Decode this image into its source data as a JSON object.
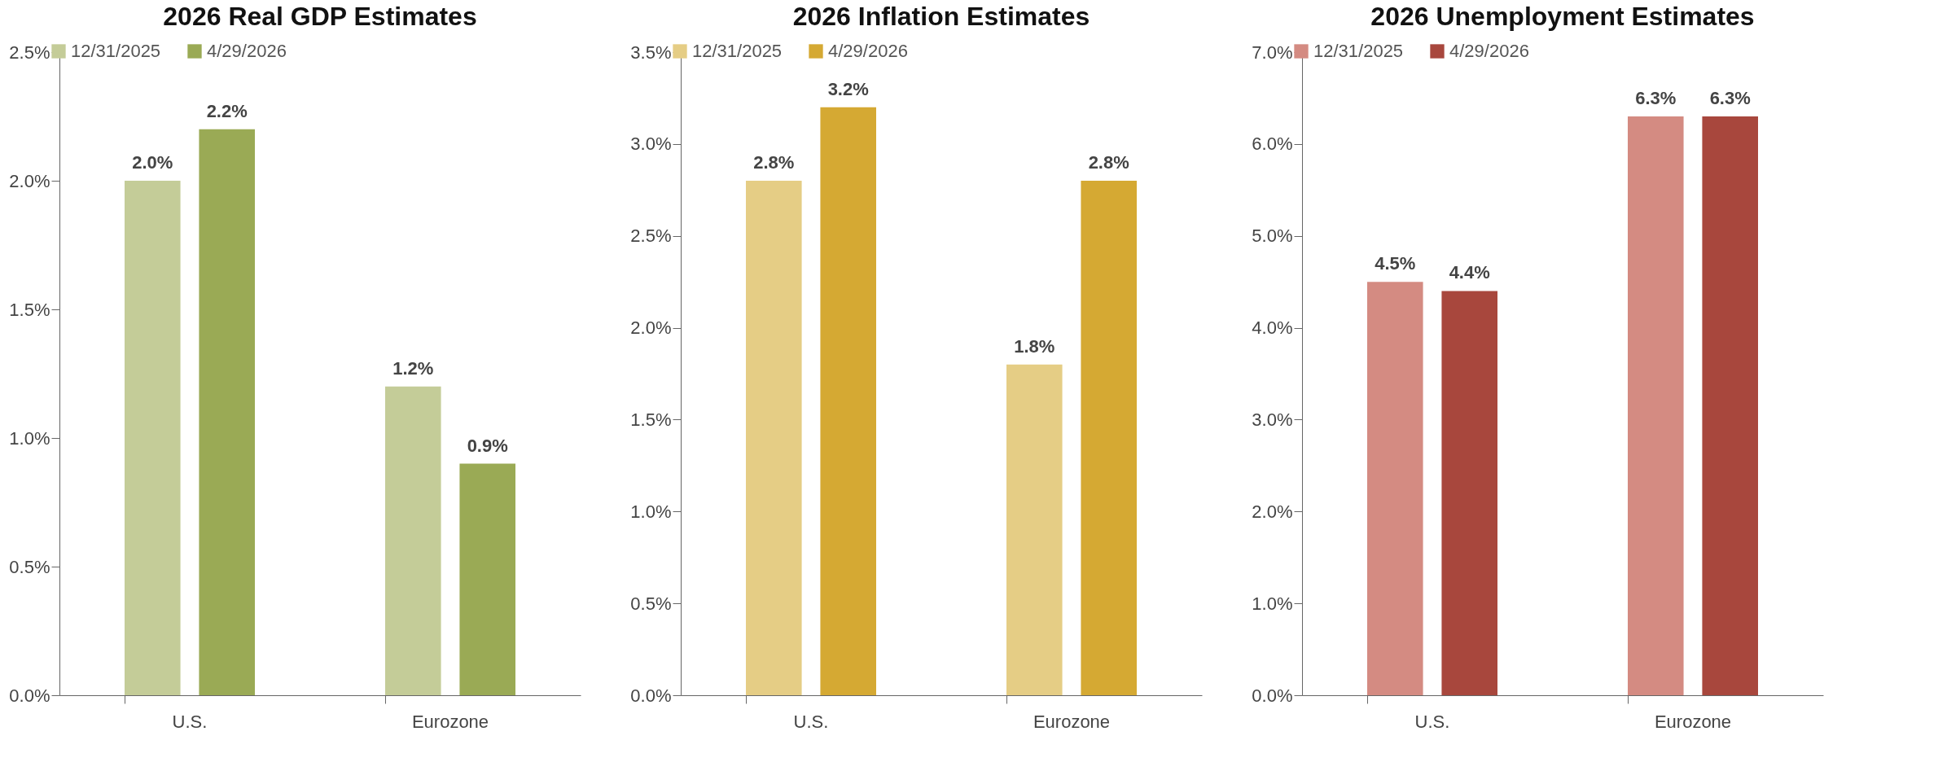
{
  "chart_data": [
    {
      "type": "bar",
      "title": "2026 Real GDP Estimates",
      "categories": [
        "U.S.",
        "Eurozone"
      ],
      "legend": "top left",
      "grid": false,
      "series": [
        {
          "name": "12/31/2025",
          "color": "#c4cc98",
          "values": [
            2.0,
            1.2
          ],
          "value_labels": [
            "2.0%",
            "1.2%"
          ]
        },
        {
          "name": "4/29/2026",
          "color": "#9aaa55",
          "values": [
            2.2,
            0.9
          ],
          "value_labels": [
            "2.2%",
            "0.9%"
          ]
        }
      ],
      "ylim": [
        0,
        2.5
      ],
      "yticks": [
        {
          "value": 0,
          "label": "0.0%"
        },
        {
          "value": 0.5,
          "label": "0.5%"
        },
        {
          "value": 1,
          "label": "1.0%"
        },
        {
          "value": 1.5,
          "label": "1.5%"
        },
        {
          "value": 2,
          "label": "2.0%"
        },
        {
          "value": 2.5,
          "label": "2.5%"
        }
      ]
    },
    {
      "type": "bar",
      "title": "2026 Inflation Estimates",
      "categories": [
        "U.S.",
        "Eurozone"
      ],
      "legend": "top left",
      "grid": false,
      "series": [
        {
          "name": "12/31/2025",
          "color": "#e5cd85",
          "values": [
            2.8,
            1.8
          ],
          "value_labels": [
            "2.8%",
            "1.8%"
          ]
        },
        {
          "name": "4/29/2026",
          "color": "#d5a933",
          "values": [
            3.2,
            2.8
          ],
          "value_labels": [
            "3.2%",
            "2.8%"
          ]
        }
      ],
      "ylim": [
        0,
        3.5
      ],
      "yticks": [
        {
          "value": 0,
          "label": "0.0%"
        },
        {
          "value": 0.5,
          "label": "0.5%"
        },
        {
          "value": 1,
          "label": "1.0%"
        },
        {
          "value": 1.5,
          "label": "1.5%"
        },
        {
          "value": 2,
          "label": "2.0%"
        },
        {
          "value": 2.5,
          "label": "2.5%"
        },
        {
          "value": 3,
          "label": "3.0%"
        },
        {
          "value": 3.5,
          "label": "3.5%"
        }
      ]
    },
    {
      "type": "bar",
      "title": "2026 Unemployment Estimates",
      "categories": [
        "U.S.",
        "Eurozone"
      ],
      "legend": "top left",
      "grid": false,
      "series": [
        {
          "name": "12/31/2025",
          "color": "#d48b82",
          "values": [
            4.5,
            6.3
          ],
          "value_labels": [
            "4.5%",
            "6.3%"
          ]
        },
        {
          "name": "4/29/2026",
          "color": "#a8473d",
          "values": [
            4.4,
            6.3
          ],
          "value_labels": [
            "4.4%",
            "6.3%"
          ]
        }
      ],
      "ylim": [
        0,
        7
      ],
      "yticks": [
        {
          "value": 0,
          "label": "0.0%"
        },
        {
          "value": 1,
          "label": "1.0%"
        },
        {
          "value": 2,
          "label": "2.0%"
        },
        {
          "value": 3,
          "label": "3.0%"
        },
        {
          "value": 4,
          "label": "4.0%"
        },
        {
          "value": 5,
          "label": "5.0%"
        },
        {
          "value": 6,
          "label": "6.0%"
        },
        {
          "value": 7,
          "label": "7.0%"
        }
      ]
    }
  ]
}
